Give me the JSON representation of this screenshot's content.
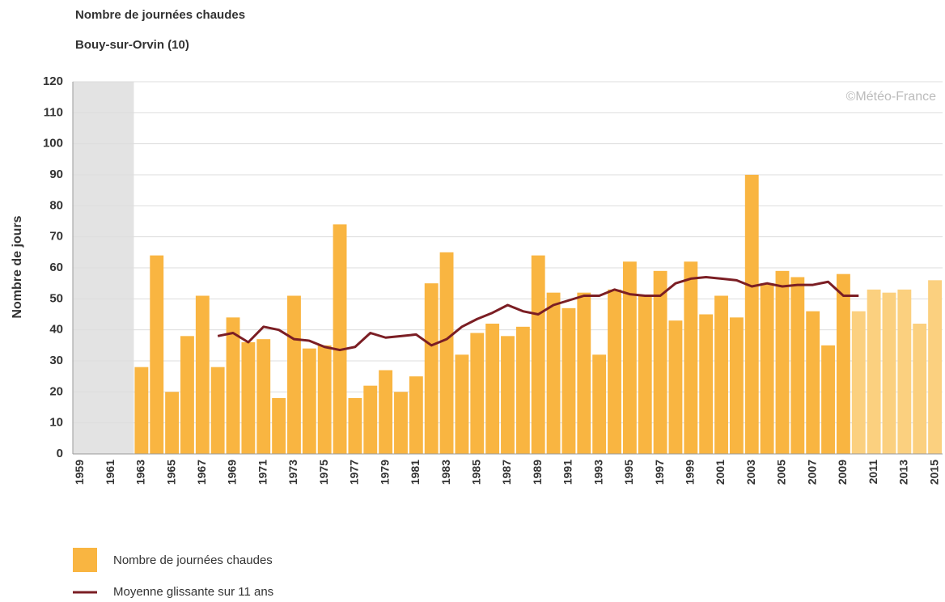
{
  "chart_data": {
    "type": "bar-line",
    "title": "Nombre de journées chaudes",
    "subtitle": "Bouy-sur-Orvin (10)",
    "ylabel": "Nombre de jours",
    "annotation": "©Météo-France",
    "categories": [
      "1959",
      null,
      "1961",
      null,
      "1963",
      null,
      "1965",
      null,
      "1967",
      null,
      "1969",
      null,
      "1971",
      null,
      "1973",
      null,
      "1975",
      null,
      "1977",
      null,
      "1979",
      null,
      "1981",
      null,
      "1983",
      null,
      "1985",
      null,
      "1987",
      null,
      "1989",
      null,
      "1991",
      null,
      "1993",
      null,
      "1995",
      null,
      "1997",
      null,
      "1999",
      null,
      "2001",
      null,
      "2003",
      null,
      "2005",
      null,
      "2007",
      null,
      "2009",
      null,
      "2011",
      null,
      "2013",
      null,
      "2015"
    ],
    "series": [
      {
        "name": "Nombre de journées chaudes",
        "color": "#f9b541",
        "colors": [
          null,
          null,
          null,
          null,
          "#f9b541",
          "#f9b541",
          "#f9b541",
          "#f9b541",
          "#f9b541",
          "#f9b541",
          "#f9b541",
          "#f9b541",
          "#f9b541",
          "#f9b541",
          "#f9b541",
          "#f9b541",
          "#f9b541",
          "#f9b541",
          "#f9b541",
          "#f9b541",
          "#f9b541",
          "#f9b541",
          "#f9b541",
          "#f9b541",
          "#f9b541",
          "#f9b541",
          "#f9b541",
          "#f9b541",
          "#f9b541",
          "#f9b541",
          "#f9b541",
          "#f9b541",
          "#f9b541",
          "#f9b541",
          "#f9b541",
          "#f9b541",
          "#f9b541",
          "#f9b541",
          "#f9b541",
          "#f9b541",
          "#f9b541",
          "#f9b541",
          "#f9b541",
          "#f9b541",
          "#f9b541",
          "#f9b541",
          "#f9b541",
          "#f9b541",
          "#f9b541",
          "#f9b541",
          "#f9b541",
          "#fbd07f",
          "#fbd07f",
          "#fbd07f",
          "#fbd07f",
          "#fbd07f",
          "#fbd07f"
        ],
        "values": [
          null,
          null,
          null,
          null,
          28,
          64,
          20,
          38,
          51,
          28,
          44,
          36,
          37,
          18,
          51,
          34,
          35,
          74,
          18,
          22,
          27,
          20,
          25,
          55,
          65,
          32,
          39,
          42,
          38,
          41,
          64,
          52,
          47,
          52,
          32,
          53,
          62,
          51,
          59,
          43,
          62,
          45,
          51,
          44,
          90,
          55,
          59,
          57,
          46,
          35,
          58,
          46,
          53,
          52,
          53,
          42,
          56
        ]
      },
      {
        "name": "Moyenne glissante sur 11 ans",
        "color": "#7b1e24",
        "values": [
          null,
          null,
          null,
          null,
          null,
          null,
          null,
          null,
          null,
          38,
          39,
          36,
          41,
          40,
          37,
          36.5,
          34.5,
          33.5,
          34.5,
          39,
          37.5,
          38,
          38.5,
          35,
          37,
          41,
          43.5,
          45.5,
          48,
          46,
          45,
          48,
          49.5,
          51,
          51,
          53,
          51.5,
          51,
          51,
          55,
          56.5,
          57,
          56.5,
          56,
          54,
          55,
          54,
          54.5,
          54.5,
          55.5,
          51,
          51,
          null,
          null,
          null,
          null,
          null
        ]
      }
    ],
    "ylim": [
      0,
      120
    ],
    "yticks": [
      0,
      10,
      20,
      30,
      40,
      50,
      60,
      70,
      80,
      90,
      100,
      110,
      120
    ],
    "grid": true
  }
}
